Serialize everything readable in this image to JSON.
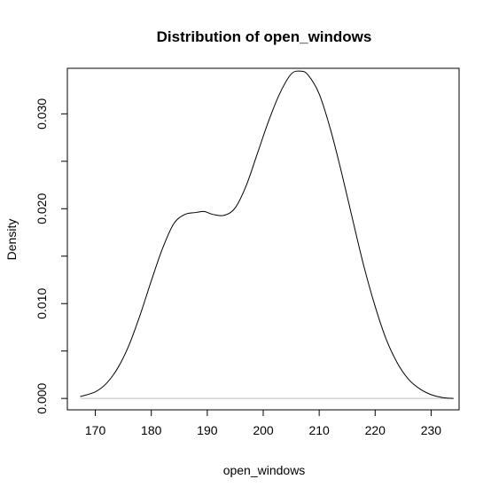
{
  "chart_data": {
    "type": "line",
    "title": "Distribution of open_windows",
    "xlabel": "open_windows",
    "ylabel": "Density",
    "xlim": [
      165,
      235
    ],
    "ylim": [
      -0.0012,
      0.0348
    ],
    "x_ticks": [
      170,
      180,
      190,
      200,
      210,
      220,
      230
    ],
    "x_tick_labels": [
      "170",
      "180",
      "190",
      "200",
      "210",
      "220",
      "230"
    ],
    "y_ticks": [
      0.0,
      0.005,
      0.01,
      0.015,
      0.02,
      0.025,
      0.03
    ],
    "y_tick_labels": [
      "0.000",
      "",
      "0.010",
      "",
      "0.020",
      "",
      "0.030"
    ],
    "baseline_y": 0,
    "baseline_color": "#bebebe",
    "line_color": "#000000",
    "grid": false,
    "series": [
      {
        "x": [
          167.3,
          170,
          172,
          174,
          176,
          178,
          180,
          182,
          184,
          186,
          188,
          189.5,
          191,
          193,
          195,
          197,
          199,
          201,
          203,
          205,
          206.7,
          208,
          210,
          212,
          214,
          216,
          218,
          220,
          222,
          224,
          226,
          228,
          230,
          232,
          234
        ],
        "y": [
          0.0002,
          0.0007,
          0.0016,
          0.0032,
          0.0056,
          0.0088,
          0.0124,
          0.0158,
          0.0184,
          0.0194,
          0.0196,
          0.0197,
          0.0194,
          0.0193,
          0.0201,
          0.0225,
          0.0259,
          0.0293,
          0.0322,
          0.0342,
          0.0345,
          0.0341,
          0.0321,
          0.0284,
          0.0238,
          0.0188,
          0.0139,
          0.0097,
          0.0062,
          0.0037,
          0.002,
          0.001,
          0.0004,
          0.0001,
          0.0
        ]
      }
    ]
  }
}
